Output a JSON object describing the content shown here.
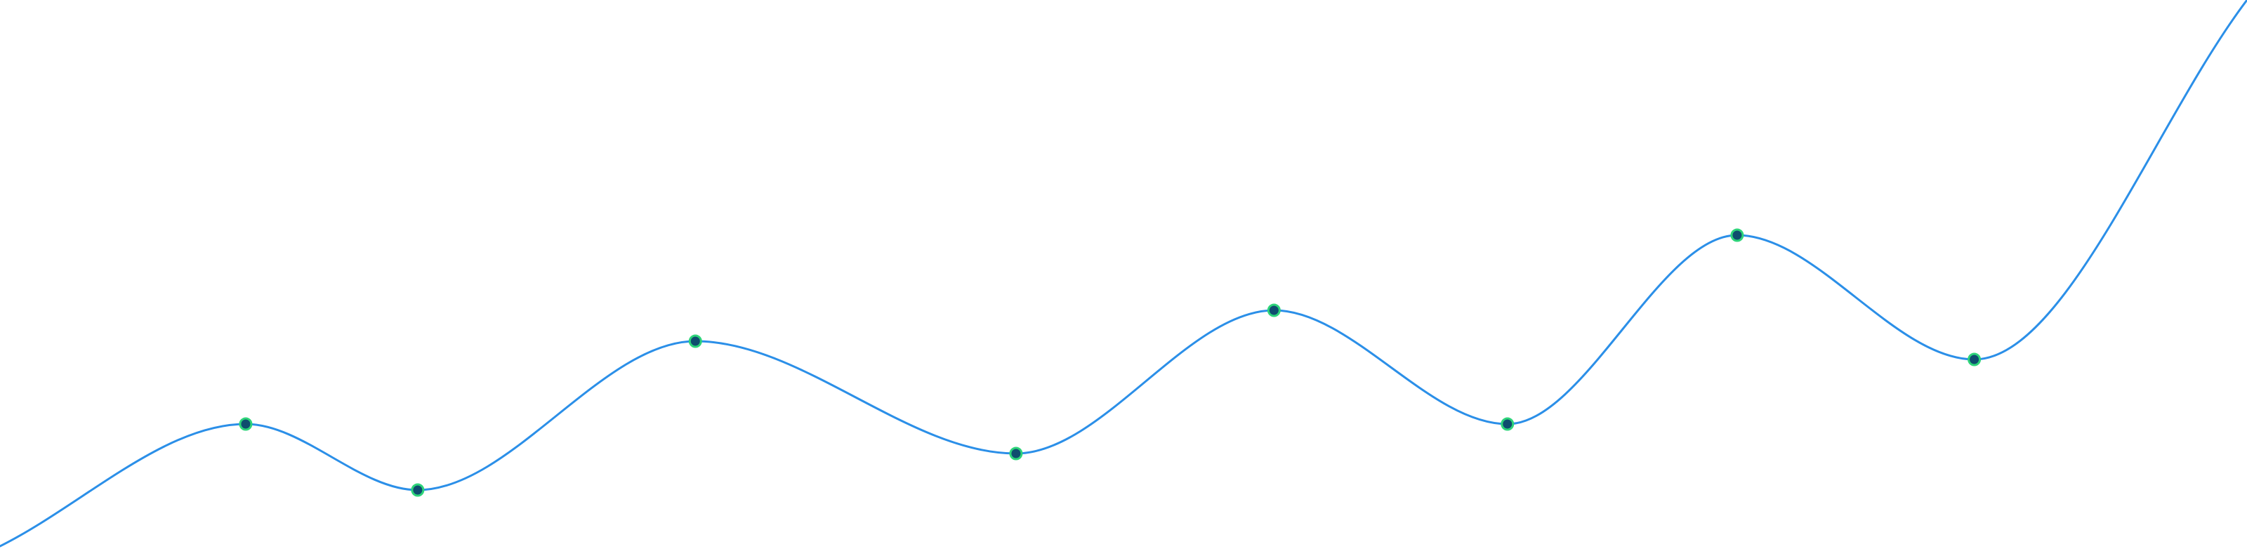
{
  "chart_data": {
    "type": "line",
    "title": "",
    "xlabel": "",
    "ylabel": "",
    "grid": false,
    "legend": "none",
    "xlim": [
      0,
      18.29
    ],
    "ylim": [
      0,
      782
    ],
    "x": [
      0,
      2,
      3.4,
      5.66,
      8.27,
      10.37,
      12.27,
      14.14,
      16.07,
      18.29
    ],
    "series": [
      {
        "values": [
          4,
          178,
          84,
          296,
          136,
          340,
          178,
          447,
          270,
          782
        ],
        "markers": [
          false,
          true,
          true,
          true,
          true,
          true,
          true,
          true,
          true,
          false
        ]
      }
    ],
    "colors": {
      "line": "#2b8fe8",
      "marker_fill": "#0f4d6e",
      "marker_stroke": "#2ed47a"
    }
  }
}
